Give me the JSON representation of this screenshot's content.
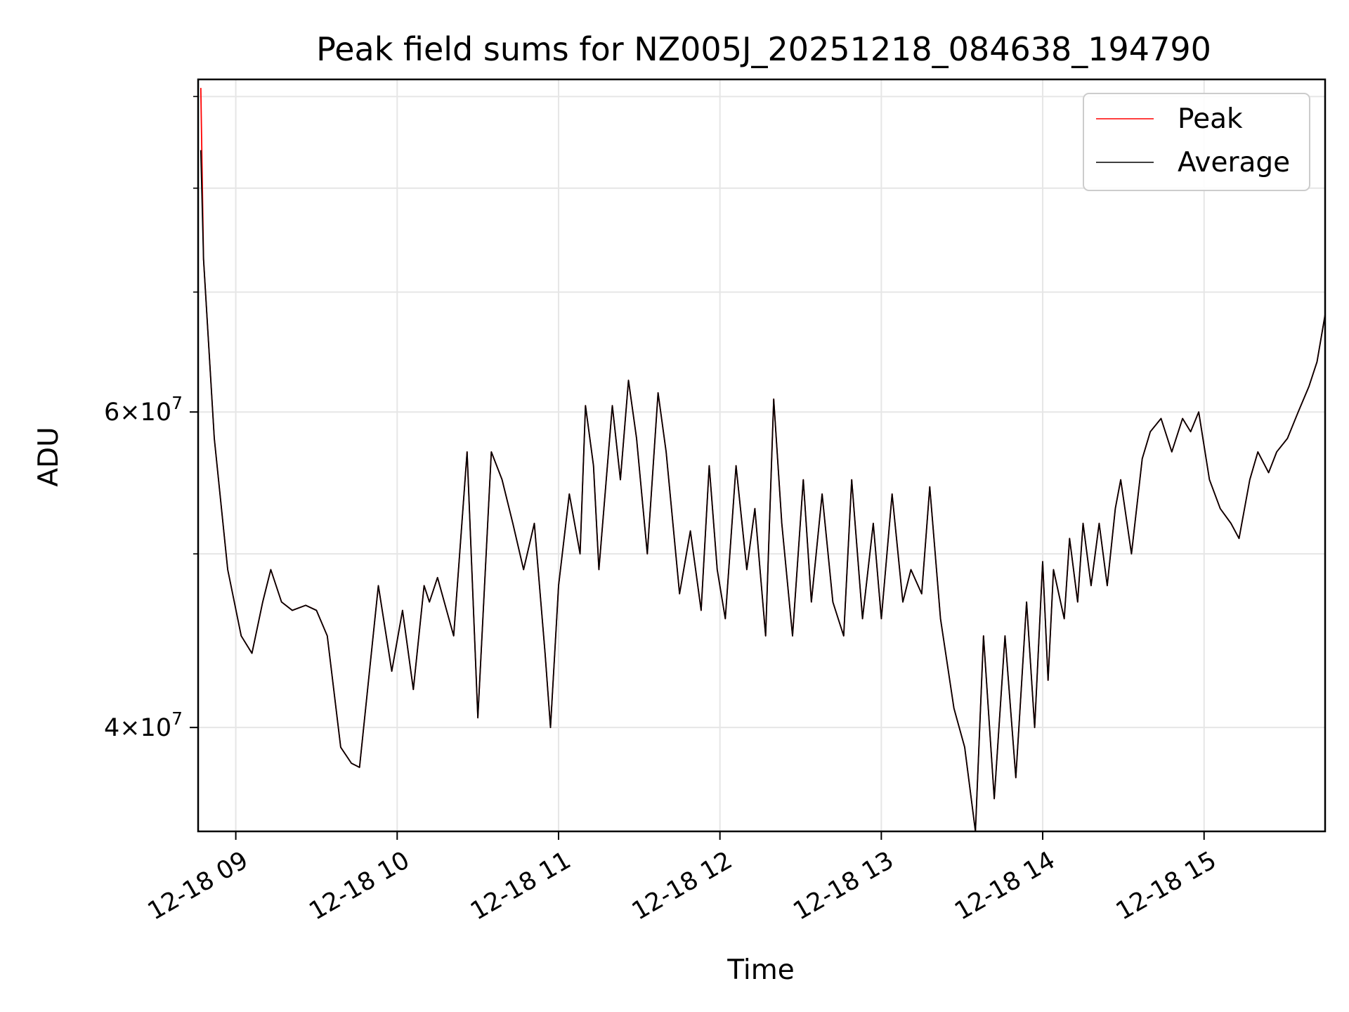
{
  "chart_data": {
    "type": "line",
    "title": "Peak field sums for NZ005J_20251218_084638_194790",
    "xlabel": "Time",
    "ylabel": "ADU",
    "y_scale": "log",
    "xlim": [
      "2025-12-18 08:46",
      "2025-12-18 15:45"
    ],
    "ylim": [
      35000000,
      92000000
    ],
    "x_ticks": [
      "12-18 09",
      "12-18 10",
      "12-18 11",
      "12-18 12",
      "12-18 13",
      "12-18 14",
      "12-18 15"
    ],
    "y_ticks": [
      {
        "value": 40000000,
        "label_base": "4",
        "label_exp": "7"
      },
      {
        "value": 60000000,
        "label_base": "6",
        "label_exp": "7"
      }
    ],
    "y_minor_ticks": [
      50000000,
      70000000,
      80000000,
      90000000
    ],
    "grid": true,
    "legend_position": "top-right",
    "series": [
      {
        "name": "Peak",
        "color": "#ff0000",
        "x": [
          "08:47",
          "08:48",
          "08:52",
          "08:57",
          "09:02",
          "09:06",
          "09:10",
          "09:13",
          "09:17",
          "09:21",
          "09:26",
          "09:30",
          "09:34",
          "09:39",
          "09:43",
          "09:46",
          "09:53",
          "09:58",
          "10:02",
          "10:06",
          "10:10",
          "10:12",
          "10:15",
          "10:21",
          "10:26",
          "10:30",
          "10:35",
          "10:39",
          "10:43",
          "10:47",
          "10:51",
          "10:55",
          "10:57",
          "11:00",
          "11:04",
          "11:08",
          "11:10",
          "11:13",
          "11:15",
          "11:20",
          "11:23",
          "11:26",
          "11:29",
          "11:33",
          "11:37",
          "11:40",
          "11:45",
          "11:49",
          "11:53",
          "11:56",
          "11:59",
          "12:02",
          "12:06",
          "12:10",
          "12:13",
          "12:17",
          "12:20",
          "12:23",
          "12:27",
          "12:31",
          "12:34",
          "12:38",
          "12:42",
          "12:46",
          "12:49",
          "12:53",
          "12:57",
          "13:00",
          "13:04",
          "13:08",
          "13:11",
          "13:15",
          "13:18",
          "13:22",
          "13:27",
          "13:31",
          "13:35",
          "13:38",
          "13:42",
          "13:46",
          "13:50",
          "13:54",
          "13:57",
          "14:00",
          "14:02",
          "14:04",
          "14:08",
          "14:10",
          "14:13",
          "14:15",
          "14:18",
          "14:21",
          "14:24",
          "14:27",
          "14:29",
          "14:33",
          "14:37",
          "14:40",
          "14:44",
          "14:48",
          "14:52",
          "14:55",
          "14:58",
          "15:02",
          "15:06",
          "15:10",
          "15:13",
          "15:17",
          "15:20",
          "15:24",
          "15:27",
          "15:31",
          "15:35",
          "15:39",
          "15:42",
          "15:45"
        ],
        "values": [
          91000000,
          73000000,
          58000000,
          49000000,
          45000000,
          44000000,
          47000000,
          49000000,
          47000000,
          46500000,
          46800000,
          46500000,
          45000000,
          39000000,
          38200000,
          38000000,
          48000000,
          43000000,
          46500000,
          42000000,
          48000000,
          47000000,
          48500000,
          45000000,
          57000000,
          40500000,
          57000000,
          55000000,
          52000000,
          49000000,
          52000000,
          44000000,
          40000000,
          48000000,
          54000000,
          50000000,
          60500000,
          56000000,
          49000000,
          60500000,
          55000000,
          62500000,
          58000000,
          50000000,
          61500000,
          57000000,
          47500000,
          51500000,
          46500000,
          56000000,
          49000000,
          46000000,
          56000000,
          49000000,
          53000000,
          45000000,
          61000000,
          52000000,
          45000000,
          55000000,
          47000000,
          54000000,
          47000000,
          45000000,
          55000000,
          46000000,
          52000000,
          46000000,
          54000000,
          47000000,
          49000000,
          47500000,
          54500000,
          46000000,
          41000000,
          39000000,
          35000000,
          45000000,
          36500000,
          45000000,
          37500000,
          47000000,
          40000000,
          49500000,
          42500000,
          49000000,
          46000000,
          51000000,
          47000000,
          52000000,
          48000000,
          52000000,
          48000000,
          53000000,
          55000000,
          50000000,
          56500000,
          58500000,
          59500000,
          57000000,
          59500000,
          58500000,
          60000000,
          55000000,
          53000000,
          52000000,
          51000000,
          55000000,
          57000000,
          55500000,
          57000000,
          58000000,
          60000000,
          62000000,
          64000000,
          68000000
        ],
        "note_same_as_average": true
      },
      {
        "name": "Average",
        "color": "#000000",
        "x": [
          "08:47",
          "08:48",
          "08:52",
          "08:57",
          "09:02",
          "09:06",
          "09:10",
          "09:13",
          "09:17",
          "09:21",
          "09:26",
          "09:30",
          "09:34",
          "09:39",
          "09:43",
          "09:46",
          "09:53",
          "09:58",
          "10:02",
          "10:06",
          "10:10",
          "10:12",
          "10:15",
          "10:21",
          "10:26",
          "10:30",
          "10:35",
          "10:39",
          "10:43",
          "10:47",
          "10:51",
          "10:55",
          "10:57",
          "11:00",
          "11:04",
          "11:08",
          "11:10",
          "11:13",
          "11:15",
          "11:20",
          "11:23",
          "11:26",
          "11:29",
          "11:33",
          "11:37",
          "11:40",
          "11:45",
          "11:49",
          "11:53",
          "11:56",
          "11:59",
          "12:02",
          "12:06",
          "12:10",
          "12:13",
          "12:17",
          "12:20",
          "12:23",
          "12:27",
          "12:31",
          "12:34",
          "12:38",
          "12:42",
          "12:46",
          "12:49",
          "12:53",
          "12:57",
          "13:00",
          "13:04",
          "13:08",
          "13:11",
          "13:15",
          "13:18",
          "13:22",
          "13:27",
          "13:31",
          "13:35",
          "13:38",
          "13:42",
          "13:46",
          "13:50",
          "13:54",
          "13:57",
          "14:00",
          "14:02",
          "14:04",
          "14:08",
          "14:10",
          "14:13",
          "14:15",
          "14:18",
          "14:21",
          "14:24",
          "14:27",
          "14:29",
          "14:33",
          "14:37",
          "14:40",
          "14:44",
          "14:48",
          "14:52",
          "14:55",
          "14:58",
          "15:02",
          "15:06",
          "15:10",
          "15:13",
          "15:17",
          "15:20",
          "15:24",
          "15:27",
          "15:31",
          "15:35",
          "15:39",
          "15:42",
          "15:45"
        ],
        "values": [
          84000000,
          73000000,
          58000000,
          49000000,
          45000000,
          44000000,
          47000000,
          49000000,
          47000000,
          46500000,
          46800000,
          46500000,
          45000000,
          39000000,
          38200000,
          38000000,
          48000000,
          43000000,
          46500000,
          42000000,
          48000000,
          47000000,
          48500000,
          45000000,
          57000000,
          40500000,
          57000000,
          55000000,
          52000000,
          49000000,
          52000000,
          44000000,
          40000000,
          48000000,
          54000000,
          50000000,
          60500000,
          56000000,
          49000000,
          60500000,
          55000000,
          62500000,
          58000000,
          50000000,
          61500000,
          57000000,
          47500000,
          51500000,
          46500000,
          56000000,
          49000000,
          46000000,
          56000000,
          49000000,
          53000000,
          45000000,
          61000000,
          52000000,
          45000000,
          55000000,
          47000000,
          54000000,
          47000000,
          45000000,
          55000000,
          46000000,
          52000000,
          46000000,
          54000000,
          47000000,
          49000000,
          47500000,
          54500000,
          46000000,
          41000000,
          39000000,
          35000000,
          45000000,
          36500000,
          45000000,
          37500000,
          47000000,
          40000000,
          49500000,
          42500000,
          49000000,
          46000000,
          51000000,
          47000000,
          52000000,
          48000000,
          52000000,
          48000000,
          53000000,
          55000000,
          50000000,
          56500000,
          58500000,
          59500000,
          57000000,
          59500000,
          58500000,
          60000000,
          55000000,
          53000000,
          52000000,
          51000000,
          55000000,
          57000000,
          55500000,
          57000000,
          58000000,
          60000000,
          62000000,
          64000000,
          68000000
        ]
      }
    ]
  }
}
